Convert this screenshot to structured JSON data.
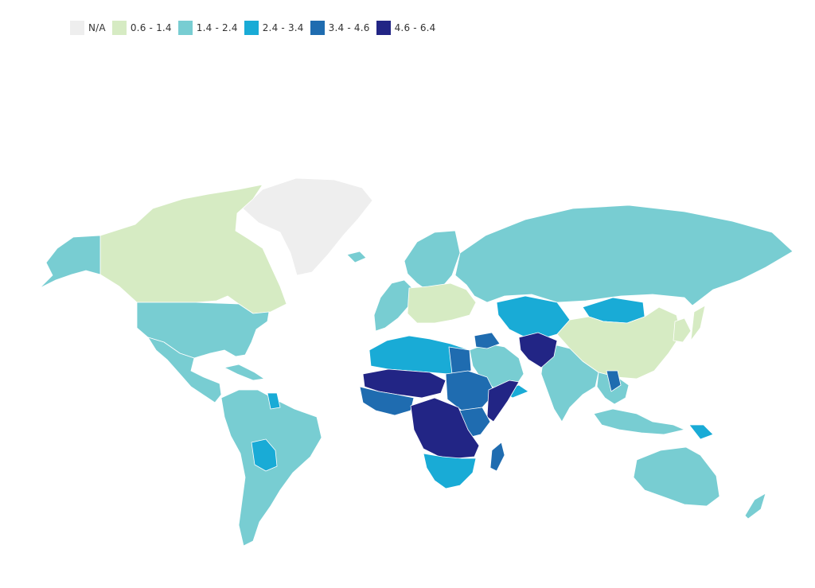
{
  "legend": {
    "items": [
      {
        "label": "N/A",
        "color": "#eeeeee"
      },
      {
        "label": "0.6 - 1.4",
        "color": "#d6ebc3"
      },
      {
        "label": "1.4 - 2.4",
        "color": "#78cdd2"
      },
      {
        "label": "2.4 - 3.4",
        "color": "#19abd6"
      },
      {
        "label": "3.4 - 4.6",
        "color": "#1f6cb0"
      },
      {
        "label": "4.6 - 6.4",
        "color": "#222585"
      }
    ]
  },
  "map": {
    "regions": [
      {
        "name": "greenland",
        "bin": 0
      },
      {
        "name": "canada",
        "bin": 1
      },
      {
        "name": "alaska",
        "bin": 2
      },
      {
        "name": "united-states",
        "bin": 2
      },
      {
        "name": "mexico-central-america",
        "bin": 2
      },
      {
        "name": "caribbean",
        "bin": 2
      },
      {
        "name": "south-america",
        "bin": 2
      },
      {
        "name": "bolivia",
        "bin": 3
      },
      {
        "name": "guyana-suriname",
        "bin": 3
      },
      {
        "name": "western-europe",
        "bin": 2
      },
      {
        "name": "central-eastern-europe",
        "bin": 1
      },
      {
        "name": "iceland",
        "bin": 2
      },
      {
        "name": "scandinavia",
        "bin": 2
      },
      {
        "name": "russia",
        "bin": 2
      },
      {
        "name": "kazakhstan-central-asia",
        "bin": 3
      },
      {
        "name": "mongolia",
        "bin": 3
      },
      {
        "name": "afghanistan-pakistan",
        "bin": 5
      },
      {
        "name": "china",
        "bin": 1
      },
      {
        "name": "korea-japan",
        "bin": 1
      },
      {
        "name": "india",
        "bin": 2
      },
      {
        "name": "southeast-asia",
        "bin": 2
      },
      {
        "name": "indochina-accent",
        "bin": 4
      },
      {
        "name": "indonesia",
        "bin": 2
      },
      {
        "name": "papua-new-guinea",
        "bin": 3
      },
      {
        "name": "australia",
        "bin": 2
      },
      {
        "name": "new-zealand",
        "bin": 2
      },
      {
        "name": "middle-east",
        "bin": 2
      },
      {
        "name": "iraq-syria",
        "bin": 4
      },
      {
        "name": "yemen",
        "bin": 3
      },
      {
        "name": "north-africa",
        "bin": 3
      },
      {
        "name": "egypt",
        "bin": 4
      },
      {
        "name": "sahel",
        "bin": 5
      },
      {
        "name": "west-africa",
        "bin": 4
      },
      {
        "name": "sudan",
        "bin": 4
      },
      {
        "name": "east-africa",
        "bin": 4
      },
      {
        "name": "somalia",
        "bin": 5
      },
      {
        "name": "central-africa",
        "bin": 5
      },
      {
        "name": "southern-africa",
        "bin": 3
      },
      {
        "name": "madagascar",
        "bin": 4
      }
    ]
  }
}
